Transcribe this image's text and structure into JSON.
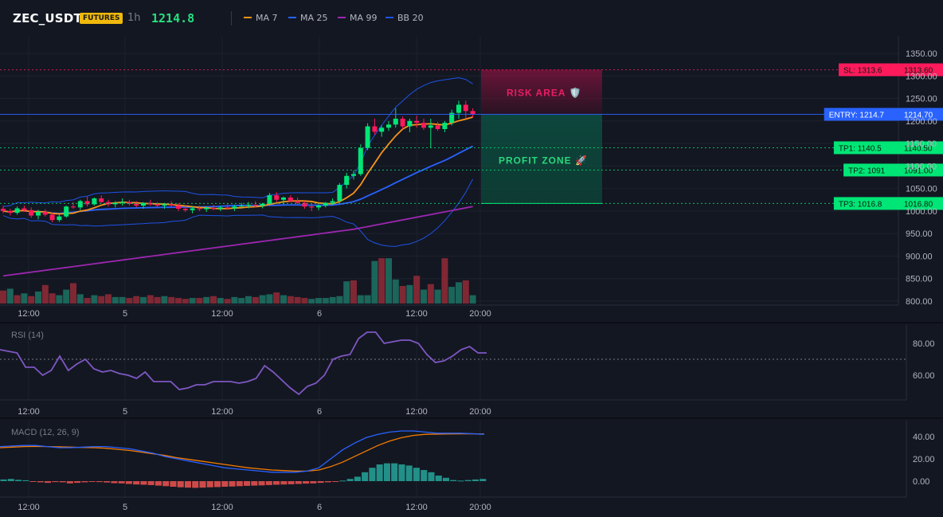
{
  "header": {
    "symbol": "ZEC_USDT",
    "badge": "FUTURES",
    "timeframe": "1h",
    "last_price": "1214.8",
    "legend": [
      {
        "label": "MA 7",
        "color": "#f7931a"
      },
      {
        "label": "MA 25",
        "color": "#2962ff"
      },
      {
        "label": "MA 99",
        "color": "#9c27b0"
      },
      {
        "label": "BB 20",
        "color": "#1e53e5"
      }
    ]
  },
  "chart_data": [
    {
      "type": "candlestick",
      "x_ticks": [
        "12:00",
        "5",
        "12:00",
        "6",
        "12:00",
        "20:00"
      ],
      "y_ticks": [
        "1350.00",
        "1300.00",
        "1250.00",
        "1200.00",
        "1150.00",
        "1100.00",
        "1050.00",
        "1000.00",
        "950.00",
        "900.00",
        "850.00",
        "800.00"
      ],
      "ylim": [
        800,
        1370
      ],
      "candles": [
        [
          1005,
          1012,
          995,
          1000
        ],
        [
          1000,
          1005,
          990,
          996
        ],
        [
          996,
          1010,
          992,
          1006
        ],
        [
          1006,
          1012,
          998,
          1002
        ],
        [
          1002,
          1008,
          985,
          990
        ],
        [
          990,
          1003,
          982,
          998
        ],
        [
          998,
          1004,
          988,
          992
        ],
        [
          992,
          996,
          975,
          980
        ],
        [
          980,
          992,
          976,
          988
        ],
        [
          988,
          1012,
          985,
          1010
        ],
        [
          1010,
          1020,
          1005,
          1008
        ],
        [
          1008,
          1025,
          1002,
          1022
        ],
        [
          1022,
          1032,
          1010,
          1015
        ],
        [
          1015,
          1030,
          1012,
          1028
        ],
        [
          1028,
          1035,
          1018,
          1020
        ],
        [
          1020,
          1025,
          1010,
          1015
        ],
        [
          1015,
          1022,
          1008,
          1018
        ],
        [
          1018,
          1028,
          1012,
          1020
        ],
        [
          1020,
          1025,
          1012,
          1016
        ],
        [
          1016,
          1022,
          1008,
          1012
        ],
        [
          1012,
          1020,
          1005,
          1018
        ],
        [
          1018,
          1025,
          1012,
          1015
        ],
        [
          1015,
          1020,
          1008,
          1012
        ],
        [
          1012,
          1018,
          1005,
          1015
        ],
        [
          1015,
          1022,
          1010,
          1012
        ],
        [
          1012,
          1018,
          1000,
          1005
        ],
        [
          1005,
          1012,
          998,
          1002
        ],
        [
          1002,
          1010,
          995,
          1006
        ],
        [
          1006,
          1012,
          1000,
          1004
        ],
        [
          1004,
          1010,
          998,
          1007
        ],
        [
          1007,
          1014,
          1002,
          1005
        ],
        [
          1005,
          1012,
          1000,
          1008
        ],
        [
          1008,
          1015,
          1003,
          1006
        ],
        [
          1006,
          1014,
          1000,
          1010
        ],
        [
          1010,
          1018,
          1005,
          1012
        ],
        [
          1012,
          1020,
          1006,
          1014
        ],
        [
          1014,
          1022,
          1008,
          1012
        ],
        [
          1012,
          1018,
          1006,
          1016
        ],
        [
          1016,
          1040,
          1012,
          1035
        ],
        [
          1035,
          1042,
          1020,
          1025
        ],
        [
          1025,
          1032,
          1015,
          1030
        ],
        [
          1030,
          1035,
          1020,
          1022
        ],
        [
          1022,
          1030,
          1012,
          1018
        ],
        [
          1018,
          1022,
          1005,
          1010
        ],
        [
          1010,
          1016,
          1000,
          1008
        ],
        [
          1008,
          1015,
          1002,
          1012
        ],
        [
          1012,
          1020,
          1008,
          1018
        ],
        [
          1018,
          1028,
          1014,
          1022
        ],
        [
          1022,
          1062,
          1018,
          1058
        ],
        [
          1058,
          1085,
          1050,
          1078
        ],
        [
          1078,
          1090,
          1070,
          1082
        ],
        [
          1082,
          1148,
          1078,
          1140
        ],
        [
          1140,
          1195,
          1135,
          1188
        ],
        [
          1188,
          1205,
          1170,
          1176
        ],
        [
          1176,
          1190,
          1165,
          1185
        ],
        [
          1185,
          1200,
          1178,
          1192
        ],
        [
          1192,
          1228,
          1185,
          1205
        ],
        [
          1205,
          1210,
          1182,
          1188
        ],
        [
          1188,
          1205,
          1175,
          1200
        ],
        [
          1200,
          1212,
          1185,
          1196
        ],
        [
          1196,
          1205,
          1180,
          1185
        ],
        [
          1185,
          1205,
          1140,
          1190
        ],
        [
          1190,
          1198,
          1178,
          1182
        ],
        [
          1182,
          1200,
          1175,
          1196
        ],
        [
          1196,
          1225,
          1190,
          1218
        ],
        [
          1218,
          1245,
          1205,
          1236
        ],
        [
          1236,
          1245,
          1205,
          1222
        ],
        [
          1222,
          1228,
          1208,
          1215
        ]
      ],
      "volumes": [
        28,
        32,
        18,
        22,
        16,
        26,
        40,
        22,
        18,
        30,
        44,
        20,
        12,
        18,
        16,
        20,
        14,
        14,
        12,
        16,
        14,
        18,
        14,
        16,
        14,
        12,
        10,
        12,
        12,
        14,
        16,
        12,
        10,
        14,
        12,
        16,
        14,
        18,
        20,
        24,
        18,
        16,
        14,
        12,
        10,
        12,
        12,
        14,
        16,
        48,
        50,
        18,
        18,
        92,
        98,
        98,
        52,
        38,
        40,
        60,
        30,
        42,
        30,
        98,
        36,
        46,
        50,
        18
      ],
      "volume_up": [
        false,
        true,
        false,
        true,
        false,
        true,
        false,
        false,
        true,
        true,
        false,
        true,
        false,
        true,
        false,
        false,
        true,
        true,
        false,
        false,
        true,
        false,
        false,
        true,
        false,
        false,
        false,
        true,
        false,
        true,
        false,
        true,
        false,
        true,
        true,
        true,
        false,
        true,
        true,
        false,
        true,
        false,
        false,
        false,
        true,
        true,
        true,
        true,
        true,
        true,
        false,
        true,
        true,
        true,
        false,
        true,
        true,
        false,
        true,
        false,
        true,
        false,
        true,
        false,
        true,
        true,
        false,
        true
      ],
      "levels": [
        {
          "label": "SL: 1313.6",
          "value": "1313.60",
          "price": 1313.6,
          "color": "#ff1a5c"
        },
        {
          "label": "ENTRY: 1214.7",
          "value": "1214.70",
          "price": 1214.7,
          "color": "#2962ff"
        },
        {
          "label": "TP1: 1140.5",
          "value": "1140.50",
          "price": 1140.5,
          "color": "#00e676"
        },
        {
          "label": "TP2: 1091",
          "value": "1091.00",
          "price": 1091,
          "color": "#00e676"
        },
        {
          "label": "TP3: 1016.8",
          "value": "1016.80",
          "price": 1016.8,
          "color": "#00e676"
        }
      ],
      "zones": {
        "risk": "RISK AREA 🛡️",
        "profit": "PROFIT ZONE 🚀"
      }
    },
    {
      "type": "line",
      "title": "RSI (14)",
      "y_ticks": [
        "80.00",
        "60.00"
      ],
      "ylim": [
        50,
        93
      ],
      "level": 70,
      "values": [
        76,
        75,
        74,
        65,
        65,
        60,
        63,
        72,
        63,
        67,
        70,
        64,
        62,
        63,
        61,
        60,
        58,
        62,
        56,
        56,
        56,
        51,
        52,
        54,
        54,
        56,
        56,
        56,
        55,
        56,
        58,
        66,
        62,
        57,
        52,
        48,
        53,
        55,
        60,
        70,
        72,
        73,
        83,
        87,
        87,
        80,
        81,
        82,
        82,
        80,
        73,
        68,
        69,
        72,
        76,
        78,
        74,
        74
      ]
    },
    {
      "type": "bar",
      "title": "MACD (12, 26, 9)",
      "y_ticks": [
        "40.00",
        "20.00",
        "0.00"
      ],
      "ylim": [
        -10,
        47
      ],
      "macd": [
        31,
        31.5,
        32,
        32,
        31,
        30,
        30,
        30.5,
        31,
        31,
        30,
        29,
        27,
        25,
        22,
        20,
        18,
        16,
        14,
        12,
        11,
        10,
        9,
        8,
        8,
        8,
        9,
        12,
        20,
        28,
        34,
        39,
        42,
        44,
        45,
        45,
        44,
        43,
        43,
        43,
        42.5,
        42
      ],
      "signal": [
        30,
        30.5,
        31,
        31.2,
        31,
        30.8,
        30.5,
        30.2,
        30,
        29.5,
        28.5,
        27.5,
        26,
        24.5,
        23,
        21,
        19.5,
        18,
        16.5,
        15,
        13.5,
        12,
        11,
        10,
        9.5,
        9,
        9,
        10,
        13,
        17,
        22,
        27,
        32,
        36,
        39,
        41,
        42,
        42.2,
        42.3,
        42.4,
        42.5,
        42.3
      ],
      "histogram": [
        1.5,
        2,
        1.2,
        0.8,
        -0.5,
        -1,
        -1.5,
        -0.8,
        -1,
        -2,
        -1.5,
        -1,
        -0.6,
        -0.8,
        -1.2,
        -1.8,
        -2,
        -2.5,
        -3,
        -3.2,
        -3.5,
        -4,
        -4.5,
        -5,
        -5.5,
        -5.8,
        -6,
        -5.8,
        -5.5,
        -5.3,
        -5,
        -4.8,
        -4.5,
        -4.2,
        -4,
        -3.8,
        -3.5,
        -3.2,
        -3,
        -2.8,
        -2.5,
        -2.2,
        -2,
        -1.5,
        -1,
        -0.5,
        0.5,
        2,
        4,
        8,
        12,
        15,
        16,
        16,
        15,
        14,
        12,
        10,
        8,
        5,
        3,
        1,
        0.5,
        1,
        1.5,
        2
      ]
    }
  ]
}
